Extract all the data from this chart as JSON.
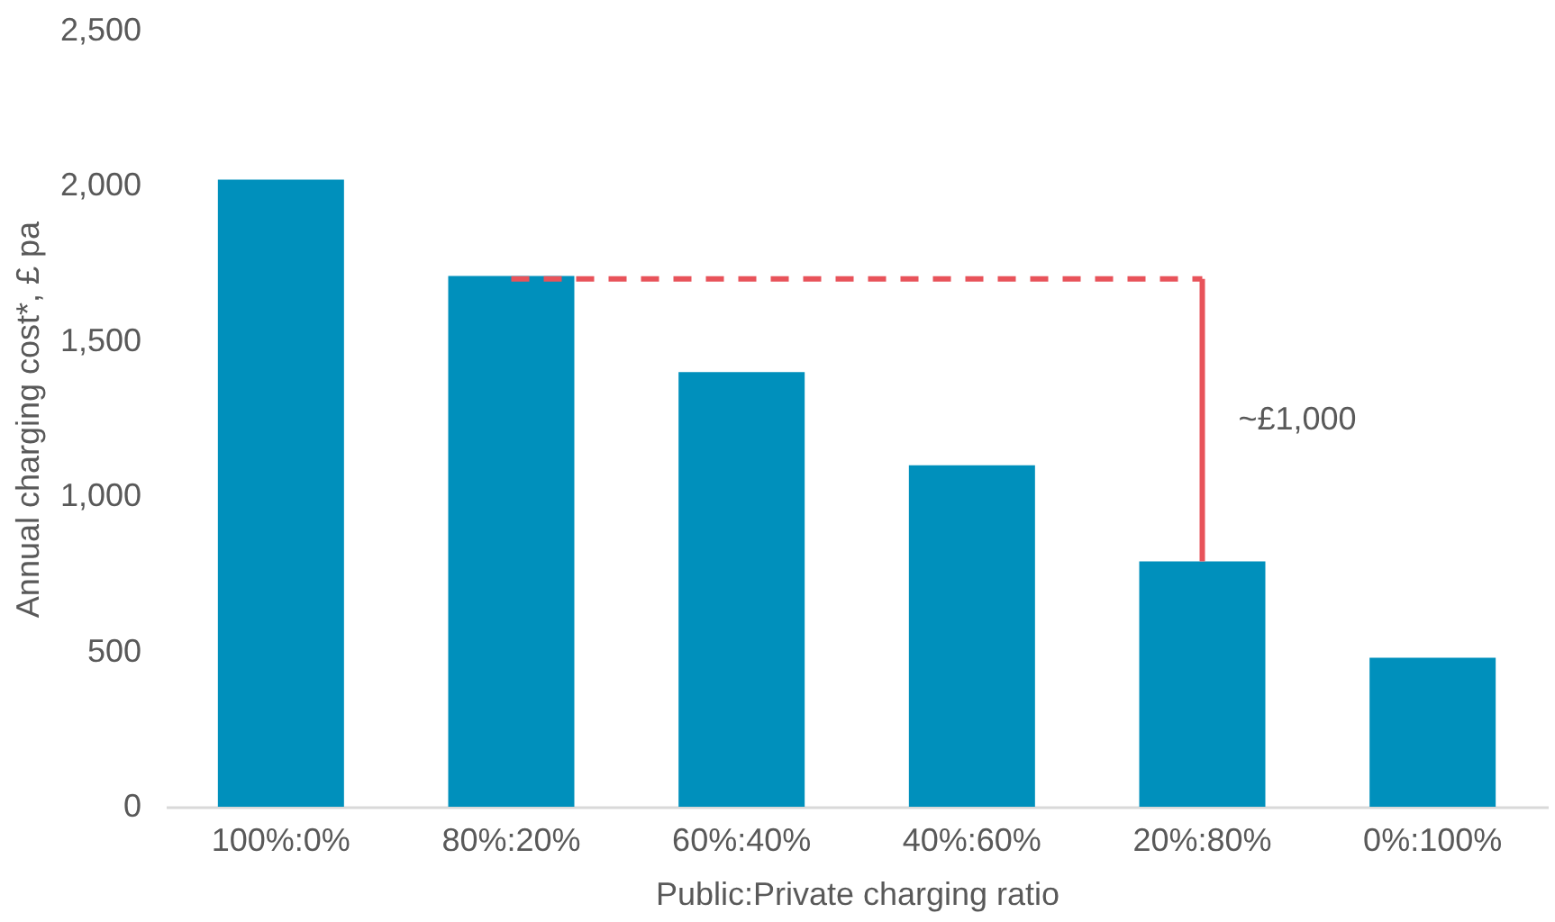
{
  "chart_data": {
    "type": "bar",
    "xlabel": "Public:Private charging ratio",
    "ylabel": "Annual charging cost*, £ pa",
    "categories": [
      "100%:0%",
      "80%:20%",
      "60%:40%",
      "40%:60%",
      "20%:80%",
      "0%:100%"
    ],
    "values": [
      2020,
      1710,
      1400,
      1100,
      790,
      480
    ],
    "color": "#0090bc",
    "ylim": [
      0,
      2500
    ],
    "yticks": [
      0,
      {
        "value": 500,
        "label": "500"
      },
      {
        "value": 1000,
        "label": "1,000"
      },
      {
        "value": 1500,
        "label": "1,500"
      },
      {
        "value": 2000,
        "label": "2,000"
      },
      {
        "value": 2500,
        "label": "2,500"
      }
    ],
    "grid": false,
    "ref_lines": [
      {
        "axis": "y",
        "value": 1700,
        "color": "#e8535a",
        "line_style": "dashed"
      }
    ],
    "annotations": [
      "~£1,000"
    ]
  }
}
